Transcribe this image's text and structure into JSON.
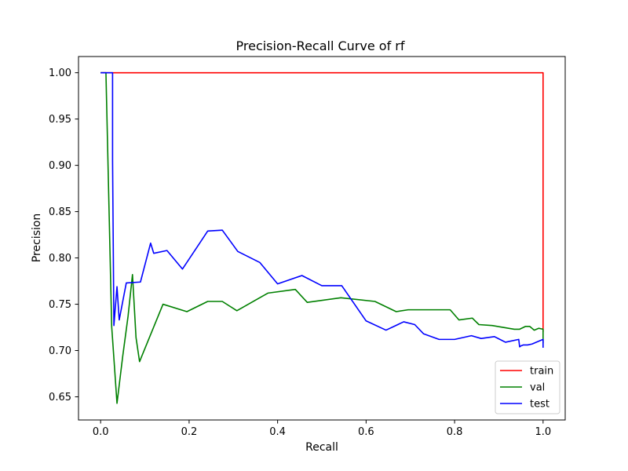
{
  "chart_data": {
    "type": "line",
    "title": "Precision-Recall Curve of rf",
    "xlabel": "Recall",
    "ylabel": "Precision",
    "xlim": [
      -0.05,
      1.05
    ],
    "ylim": [
      0.625,
      1.0175
    ],
    "grid": false,
    "legend_position": "lower right",
    "x_ticks": [
      {
        "value": 0.0,
        "label": "0.0"
      },
      {
        "value": 0.2,
        "label": "0.2"
      },
      {
        "value": 0.4,
        "label": "0.4"
      },
      {
        "value": 0.6,
        "label": "0.6"
      },
      {
        "value": 0.8,
        "label": "0.8"
      },
      {
        "value": 1.0,
        "label": "1.0"
      }
    ],
    "y_ticks": [
      {
        "value": 0.65,
        "label": "0.65"
      },
      {
        "value": 0.7,
        "label": "0.70"
      },
      {
        "value": 0.75,
        "label": "0.75"
      },
      {
        "value": 0.8,
        "label": "0.80"
      },
      {
        "value": 0.85,
        "label": "0.85"
      },
      {
        "value": 0.9,
        "label": "0.90"
      },
      {
        "value": 0.95,
        "label": "0.95"
      },
      {
        "value": 1.0,
        "label": "1.00"
      }
    ],
    "series": [
      {
        "name": "train",
        "color": "#ff0000",
        "x": [
          0.0,
          0.1,
          0.3,
          0.5,
          0.7,
          0.9,
          1.0,
          1.0
        ],
        "y": [
          1.0,
          1.0,
          1.0,
          1.0,
          1.0,
          1.0,
          1.0,
          0.72
        ]
      },
      {
        "name": "val",
        "color": "#008000",
        "x": [
          0.0,
          0.012,
          0.025,
          0.037,
          0.05,
          0.062,
          0.072,
          0.08,
          0.088,
          0.141,
          0.195,
          0.242,
          0.275,
          0.308,
          0.378,
          0.44,
          0.467,
          0.543,
          0.62,
          0.668,
          0.695,
          0.742,
          0.79,
          0.81,
          0.84,
          0.855,
          0.885,
          0.91,
          0.935,
          0.947,
          0.96,
          0.97,
          0.98,
          0.99,
          1.0,
          1.0
        ],
        "y": [
          1.0,
          1.0,
          0.726,
          0.643,
          0.694,
          0.737,
          0.782,
          0.714,
          0.688,
          0.75,
          0.742,
          0.753,
          0.753,
          0.743,
          0.762,
          0.766,
          0.752,
          0.757,
          0.753,
          0.742,
          0.744,
          0.744,
          0.744,
          0.733,
          0.735,
          0.728,
          0.727,
          0.725,
          0.723,
          0.723,
          0.726,
          0.726,
          0.722,
          0.724,
          0.723,
          0.708
        ]
      },
      {
        "name": "test",
        "color": "#0000ff",
        "x": [
          0.0,
          0.027,
          0.027,
          0.03,
          0.037,
          0.042,
          0.058,
          0.09,
          0.113,
          0.12,
          0.15,
          0.185,
          0.242,
          0.275,
          0.31,
          0.36,
          0.4,
          0.455,
          0.5,
          0.545,
          0.6,
          0.645,
          0.685,
          0.71,
          0.73,
          0.765,
          0.8,
          0.838,
          0.86,
          0.89,
          0.915,
          0.945,
          0.947,
          0.95,
          0.955,
          0.965,
          0.975,
          0.985,
          0.995,
          1.0,
          1.0
        ],
        "y": [
          1.0,
          1.0,
          0.905,
          0.727,
          0.769,
          0.733,
          0.773,
          0.774,
          0.816,
          0.805,
          0.808,
          0.788,
          0.829,
          0.83,
          0.807,
          0.795,
          0.772,
          0.781,
          0.77,
          0.77,
          0.732,
          0.722,
          0.731,
          0.728,
          0.718,
          0.712,
          0.712,
          0.716,
          0.713,
          0.715,
          0.709,
          0.712,
          0.704,
          0.705,
          0.706,
          0.706,
          0.707,
          0.709,
          0.711,
          0.712,
          0.703
        ]
      }
    ]
  }
}
